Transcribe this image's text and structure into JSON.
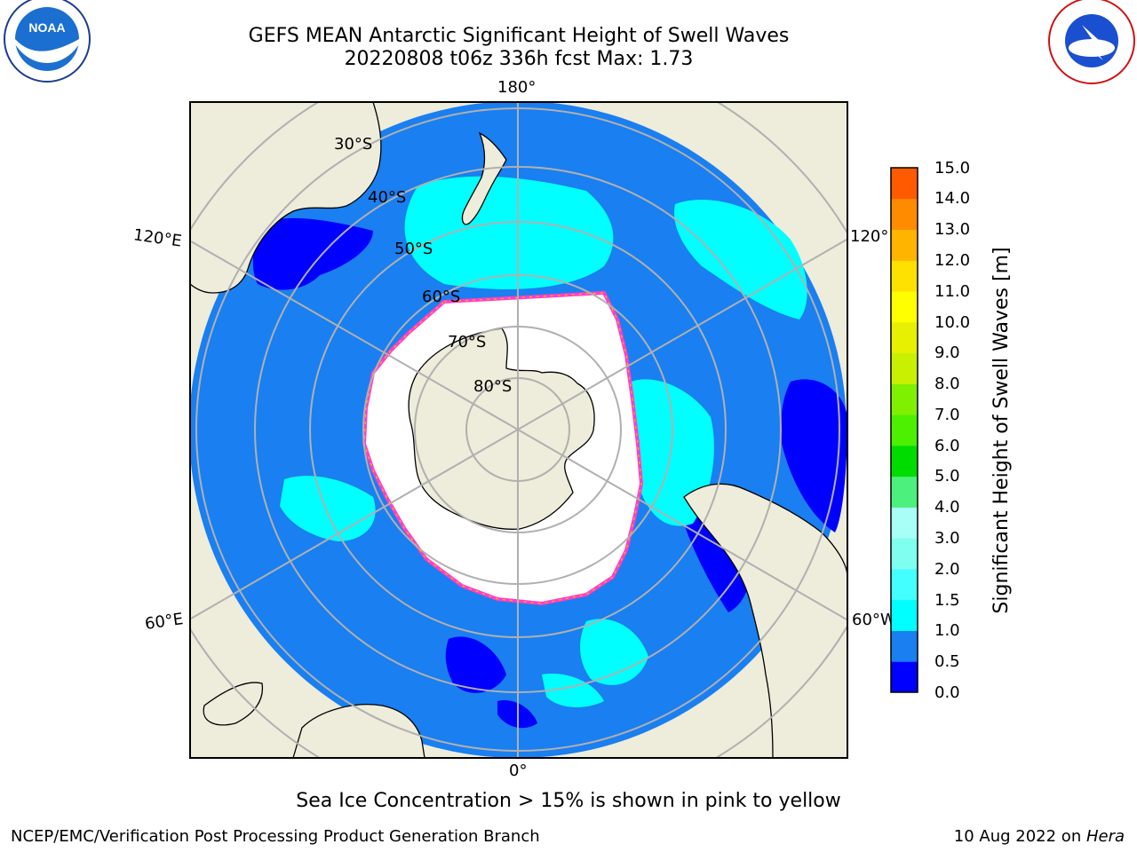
{
  "title": {
    "line1": "GEFS MEAN Antarctic Significant Height of Swell Waves",
    "line2": "20220808 t06z 336h fcst   Max: 1.73"
  },
  "map": {
    "projection": "south-polar-stereographic",
    "lon_labels": {
      "top": "180°",
      "bottom": "0°",
      "left_upper": "120°E",
      "left_lower": "60°E",
      "right_upper": "120°W",
      "right_lower": "60°W"
    },
    "lat_labels": [
      "30°S",
      "40°S",
      "50°S",
      "60°S",
      "70°S",
      "80°S"
    ],
    "colors": {
      "land": "#eeecdb",
      "ocean_main": "#1a7ff0",
      "swell_low": "#0000ff",
      "swell_mid": "#00ffff",
      "ice_white": "#ffffff",
      "ice_edge": "#ff3ec8",
      "grid": "#b0b0b0"
    }
  },
  "colorbar": {
    "label": "Significant Height of Swell Waves [m]",
    "ticks": [
      "15.0",
      "14.0",
      "13.0",
      "12.0",
      "11.0",
      "10.0",
      "9.0",
      "8.0",
      "7.0",
      "6.0",
      "5.0",
      "4.0",
      "3.0",
      "2.0",
      "1.5",
      "1.0",
      "0.5",
      "0.0"
    ],
    "bin_colors": [
      "#0000ff",
      "#1a7ff0",
      "#00ffff",
      "#44ffff",
      "#7ffff0",
      "#a8fff8",
      "#4cf07c",
      "#00dc00",
      "#4cf000",
      "#7ff000",
      "#c8f000",
      "#e6f000",
      "#ffff00",
      "#ffe100",
      "#ffb400",
      "#ff8c00",
      "#ff5a00",
      "#ff2800",
      "#ff0000"
    ]
  },
  "logos": {
    "noaa": "NOAA",
    "nws": "NATIONAL WEATHER SERVICE"
  },
  "footer": {
    "note": "Sea Ice Concentration > 15% is shown in pink to yellow",
    "credit": "NCEP/EMC/Verification Post Processing Product Generation Branch",
    "date_prefix": "10 Aug 2022 on ",
    "date_machine": "Hera"
  }
}
